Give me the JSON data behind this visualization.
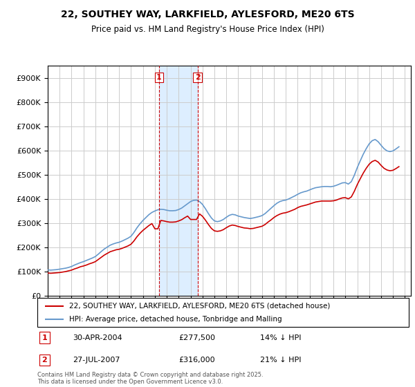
{
  "title": "22, SOUTHEY WAY, LARKFIELD, AYLESFORD, ME20 6TS",
  "subtitle": "Price paid vs. HM Land Registry's House Price Index (HPI)",
  "ytick_values": [
    0,
    100000,
    200000,
    300000,
    400000,
    500000,
    600000,
    700000,
    800000,
    900000
  ],
  "ylim": [
    0,
    950000
  ],
  "xlim_start": 1995.0,
  "xlim_end": 2025.5,
  "transaction1_x": 2004.33,
  "transaction1_y": 277500,
  "transaction1_label": "1",
  "transaction1_date": "30-APR-2004",
  "transaction1_price": "£277,500",
  "transaction1_hpi": "14% ↓ HPI",
  "transaction2_x": 2007.58,
  "transaction2_y": 316000,
  "transaction2_label": "2",
  "transaction2_date": "27-JUL-2007",
  "transaction2_price": "£316,000",
  "transaction2_hpi": "21% ↓ HPI",
  "shade_x1_start": 2004.33,
  "shade_x1_end": 2007.58,
  "red_line_color": "#cc0000",
  "blue_line_color": "#6699cc",
  "shade_color": "#ddeeff",
  "dashed_vline_color": "#cc0000",
  "background_color": "#ffffff",
  "grid_color": "#cccccc",
  "legend_line1": "22, SOUTHEY WAY, LARKFIELD, AYLESFORD, ME20 6TS (detached house)",
  "legend_line2": "HPI: Average price, detached house, Tonbridge and Malling",
  "footer": "Contains HM Land Registry data © Crown copyright and database right 2025.\nThis data is licensed under the Open Government Licence v3.0.",
  "hpi_data": {
    "years": [
      1995.0,
      1995.25,
      1995.5,
      1995.75,
      1996.0,
      1996.25,
      1996.5,
      1996.75,
      1997.0,
      1997.25,
      1997.5,
      1997.75,
      1998.0,
      1998.25,
      1998.5,
      1998.75,
      1999.0,
      1999.25,
      1999.5,
      1999.75,
      2000.0,
      2000.25,
      2000.5,
      2000.75,
      2001.0,
      2001.25,
      2001.5,
      2001.75,
      2002.0,
      2002.25,
      2002.5,
      2002.75,
      2003.0,
      2003.25,
      2003.5,
      2003.75,
      2004.0,
      2004.25,
      2004.5,
      2004.75,
      2005.0,
      2005.25,
      2005.5,
      2005.75,
      2006.0,
      2006.25,
      2006.5,
      2006.75,
      2007.0,
      2007.25,
      2007.5,
      2007.75,
      2008.0,
      2008.25,
      2008.5,
      2008.75,
      2009.0,
      2009.25,
      2009.5,
      2009.75,
      2010.0,
      2010.25,
      2010.5,
      2010.75,
      2011.0,
      2011.25,
      2011.5,
      2011.75,
      2012.0,
      2012.25,
      2012.5,
      2012.75,
      2013.0,
      2013.25,
      2013.5,
      2013.75,
      2014.0,
      2014.25,
      2014.5,
      2014.75,
      2015.0,
      2015.25,
      2015.5,
      2015.75,
      2016.0,
      2016.25,
      2016.5,
      2016.75,
      2017.0,
      2017.25,
      2017.5,
      2017.75,
      2018.0,
      2018.25,
      2018.5,
      2018.75,
      2019.0,
      2019.25,
      2019.5,
      2019.75,
      2020.0,
      2020.25,
      2020.5,
      2020.75,
      2021.0,
      2021.25,
      2021.5,
      2021.75,
      2022.0,
      2022.25,
      2022.5,
      2022.75,
      2023.0,
      2023.25,
      2023.5,
      2023.75,
      2024.0,
      2024.25,
      2024.5
    ],
    "values": [
      108000,
      107000,
      108000,
      109000,
      111000,
      113000,
      115000,
      118000,
      122000,
      128000,
      133000,
      138000,
      142000,
      147000,
      152000,
      157000,
      163000,
      173000,
      184000,
      194000,
      202000,
      210000,
      215000,
      219000,
      222000,
      227000,
      233000,
      239000,
      247000,
      263000,
      282000,
      298000,
      312000,
      324000,
      336000,
      345000,
      351000,
      356000,
      358000,
      357000,
      354000,
      352000,
      352000,
      353000,
      357000,
      363000,
      372000,
      381000,
      390000,
      395000,
      396000,
      390000,
      378000,
      360000,
      340000,
      322000,
      310000,
      307000,
      310000,
      316000,
      325000,
      333000,
      337000,
      335000,
      330000,
      327000,
      324000,
      322000,
      320000,
      322000,
      325000,
      328000,
      332000,
      340000,
      351000,
      362000,
      373000,
      383000,
      390000,
      394000,
      396000,
      401000,
      407000,
      413000,
      420000,
      426000,
      430000,
      433000,
      438000,
      443000,
      447000,
      449000,
      451000,
      452000,
      452000,
      451000,
      453000,
      457000,
      462000,
      467000,
      468000,
      462000,
      472000,
      498000,
      530000,
      558000,
      585000,
      608000,
      628000,
      641000,
      646000,
      637000,
      622000,
      608000,
      599000,
      596000,
      599000,
      607000,
      616000
    ]
  },
  "price_data": {
    "years": [
      1995.0,
      1995.25,
      1995.5,
      1995.75,
      1996.0,
      1996.25,
      1996.5,
      1996.75,
      1997.0,
      1997.25,
      1997.5,
      1997.75,
      1998.0,
      1998.25,
      1998.5,
      1998.75,
      1999.0,
      1999.25,
      1999.5,
      1999.75,
      2000.0,
      2000.25,
      2000.5,
      2000.75,
      2001.0,
      2001.25,
      2001.5,
      2001.75,
      2002.0,
      2002.25,
      2002.5,
      2002.75,
      2003.0,
      2003.25,
      2003.5,
      2003.75,
      2004.0,
      2004.25,
      2004.5,
      2004.75,
      2005.0,
      2005.25,
      2005.5,
      2005.75,
      2006.0,
      2006.25,
      2006.5,
      2006.75,
      2007.0,
      2007.25,
      2007.5,
      2007.75,
      2008.0,
      2008.25,
      2008.5,
      2008.75,
      2009.0,
      2009.25,
      2009.5,
      2009.75,
      2010.0,
      2010.25,
      2010.5,
      2010.75,
      2011.0,
      2011.25,
      2011.5,
      2011.75,
      2012.0,
      2012.25,
      2012.5,
      2012.75,
      2013.0,
      2013.25,
      2013.5,
      2013.75,
      2014.0,
      2014.25,
      2014.5,
      2014.75,
      2015.0,
      2015.25,
      2015.5,
      2015.75,
      2016.0,
      2016.25,
      2016.5,
      2016.75,
      2017.0,
      2017.25,
      2017.5,
      2017.75,
      2018.0,
      2018.25,
      2018.5,
      2018.75,
      2019.0,
      2019.25,
      2019.5,
      2019.75,
      2020.0,
      2020.25,
      2020.5,
      2020.75,
      2021.0,
      2021.25,
      2021.5,
      2021.75,
      2022.0,
      2022.25,
      2022.5,
      2022.75,
      2023.0,
      2023.25,
      2023.5,
      2023.75,
      2024.0,
      2024.25,
      2024.5
    ],
    "values": [
      95000,
      94000,
      95000,
      96000,
      97000,
      99000,
      101000,
      104000,
      107000,
      112000,
      116000,
      121000,
      124000,
      128000,
      133000,
      137000,
      142000,
      151000,
      160000,
      169000,
      176000,
      183000,
      187000,
      191000,
      193000,
      197000,
      202000,
      207000,
      214000,
      228000,
      245000,
      259000,
      271000,
      281000,
      291000,
      299000,
      277500,
      277500,
      312000,
      310000,
      307000,
      305000,
      305000,
      306000,
      310000,
      315000,
      323000,
      330000,
      316000,
      316000,
      316000,
      339000,
      329000,
      313000,
      295000,
      279000,
      269000,
      267000,
      269000,
      274000,
      282000,
      289000,
      293000,
      291000,
      287000,
      284000,
      281000,
      280000,
      278000,
      279000,
      282000,
      285000,
      288000,
      295000,
      305000,
      314000,
      324000,
      332000,
      338000,
      342000,
      344000,
      348000,
      353000,
      358000,
      365000,
      370000,
      373000,
      376000,
      380000,
      384000,
      388000,
      390000,
      392000,
      392000,
      392000,
      392000,
      393000,
      396000,
      401000,
      405000,
      406000,
      401000,
      409000,
      432000,
      460000,
      484000,
      507000,
      527000,
      544000,
      555000,
      560000,
      553000,
      539000,
      527000,
      520000,
      517000,
      519000,
      526000,
      534000
    ]
  }
}
